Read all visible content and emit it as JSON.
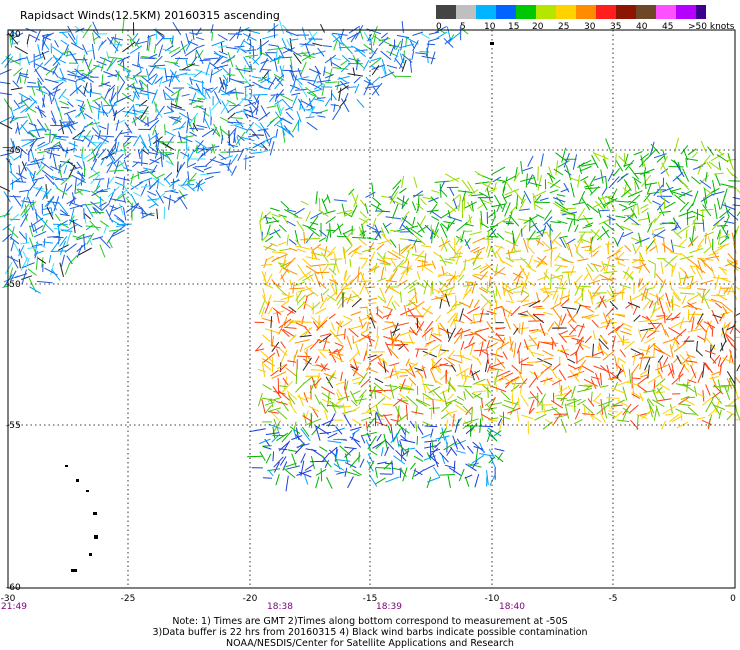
{
  "title": "Rapidsact Winds(12.5KM) 20160315 ascending",
  "legend": {
    "colors": [
      "#444444",
      "#bfbfbf",
      "#00b4ff",
      "#0064ff",
      "#00c800",
      "#b4e600",
      "#ffd200",
      "#ff8c00",
      "#ff1e1e",
      "#8c1400",
      "#6e4628",
      "#ff50ff",
      "#b400ff",
      "#3c008c"
    ],
    "labels": [
      "0",
      "5",
      "10",
      "15",
      "20",
      "25",
      "30",
      "35",
      "40",
      "45",
      ">50 knots"
    ]
  },
  "map": {
    "lon_ticks": [
      "-30",
      "-25",
      "-20",
      "-15",
      "-10",
      "-5",
      "0"
    ],
    "lat_ticks": [
      "-40",
      "-45",
      "-50",
      "-55",
      "-60"
    ],
    "times": [
      "21:49",
      "18:38",
      "18:39",
      "18:40"
    ]
  },
  "notes": {
    "line1": "Note: 1) Times are GMT 2)Times along bottom correspond to measurement at -50S",
    "line2": "3)Data buffer is 22 hrs from 20160315 4) Black wind barbs indicate possible contamination",
    "line3": "NOAA/NESDIS/Center for Satellite Applications and Research"
  }
}
